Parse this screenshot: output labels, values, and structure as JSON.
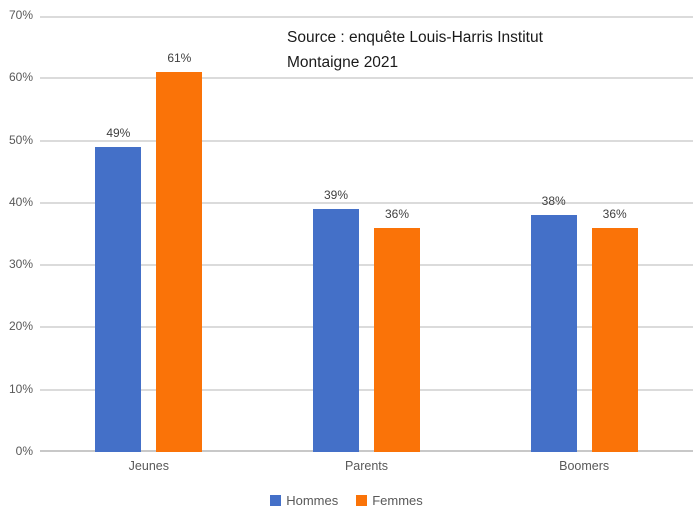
{
  "chart_data": {
    "type": "bar",
    "categories": [
      "Jeunes",
      "Parents",
      "Boomers"
    ],
    "series": [
      {
        "name": "Hommes",
        "color": "#4470C8",
        "values": [
          49,
          39,
          38
        ]
      },
      {
        "name": "Femmes",
        "color": "#FA7308",
        "values": [
          61,
          36,
          36
        ]
      }
    ],
    "data_label_suffix": "%",
    "ylim": [
      0,
      70
    ],
    "ytick_step": 10,
    "ytick_labels": [
      "0%",
      "10%",
      "20%",
      "30%",
      "40%",
      "50%",
      "60%",
      "70%"
    ],
    "grid": true,
    "legend_position": "bottom",
    "annotation_lines": [
      "Source : enquête Louis-Harris Institut",
      "Montaigne 2021"
    ]
  },
  "colors": {
    "background": "#FFFFFF",
    "gridline": "#DBDBDB",
    "axis_line": "#C8C8C8",
    "tick_label": "#595959",
    "category_label": "#595959",
    "data_label": "#404040",
    "annotation_text": "#1A1A1A",
    "legend_text": "#595959"
  }
}
